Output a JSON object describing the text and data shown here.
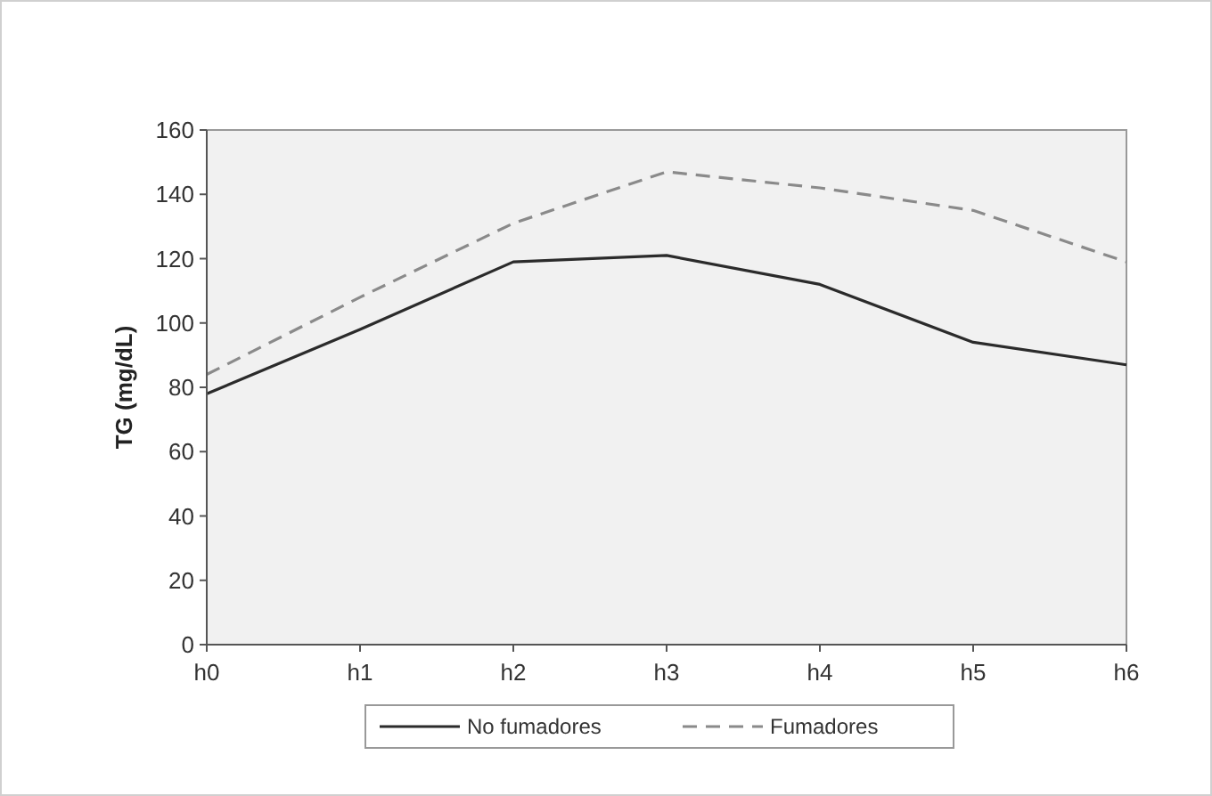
{
  "chart_data": {
    "type": "line",
    "ylabel": "TG (mg/dL)",
    "categories": [
      "h0",
      "h1",
      "h2",
      "h3",
      "h4",
      "h5",
      "h6"
    ],
    "series": [
      {
        "name": "No fumadores",
        "color": "#2b2b2b",
        "line_style": "solid",
        "values": [
          78,
          98,
          119,
          121,
          112,
          94,
          87
        ]
      },
      {
        "name": "Fumadores",
        "color": "#8a8a8a",
        "line_style": "dashed",
        "values": [
          84,
          108,
          131,
          147,
          142,
          135,
          119
        ]
      }
    ],
    "ylim": [
      0,
      160
    ],
    "yticks": [
      0,
      20,
      40,
      60,
      80,
      100,
      120,
      140,
      160
    ],
    "grid": false,
    "legend": "bottom",
    "marker": "none"
  }
}
